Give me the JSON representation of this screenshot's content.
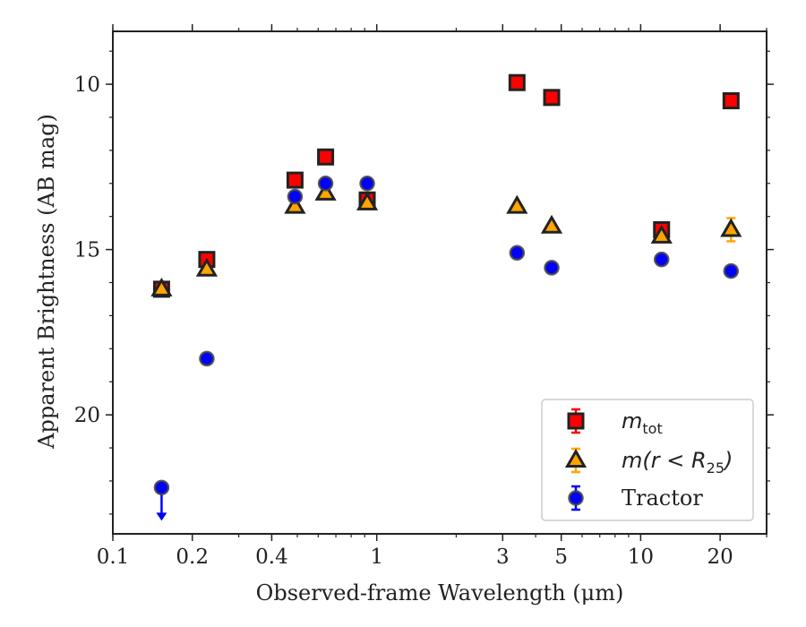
{
  "chart_data": {
    "type": "scatter",
    "xlabel": "Observed-frame Wavelength (μm)",
    "ylabel": "Apparent Brightness (AB mag)",
    "xscale": "log",
    "xlim": [
      0.1,
      30
    ],
    "ylim": [
      23.6,
      8.4
    ],
    "y_inverted": true,
    "x_ticks": [
      0.1,
      0.2,
      0.4,
      1,
      3,
      5,
      10,
      20
    ],
    "x_tick_labels": [
      "0.1",
      "0.2",
      "0.4",
      "1",
      "3",
      "5",
      "10",
      "20"
    ],
    "y_ticks": [
      10,
      15,
      20
    ],
    "y_tick_labels": [
      "10",
      "15",
      "20"
    ],
    "legend_position": "lower-right",
    "series": [
      {
        "name": "m_tot",
        "legend_main": "m",
        "legend_sub": "tot",
        "marker": "square",
        "color": "#ff0000",
        "edge_color": "#222222",
        "errorbar_color": "#ff0000",
        "x": [
          0.153,
          0.227,
          0.49,
          0.64,
          0.92,
          3.4,
          4.6,
          12.0,
          22.0
        ],
        "y": [
          16.2,
          15.3,
          12.9,
          12.2,
          13.5,
          9.95,
          10.4,
          14.4,
          10.5
        ]
      },
      {
        "name": "m(r < R_25)",
        "legend_main": "m(r < R",
        "legend_sub": "25",
        "legend_tail": ")",
        "marker": "triangle",
        "color": "#ffa500",
        "edge_color": "#222222",
        "errorbar_color": "#ffa500",
        "x": [
          0.153,
          0.227,
          0.49,
          0.64,
          0.92,
          3.4,
          4.6,
          12.0,
          22.0
        ],
        "y": [
          16.2,
          15.6,
          13.7,
          13.3,
          13.6,
          13.7,
          14.3,
          14.6,
          14.4
        ],
        "yerr": [
          0,
          0,
          0,
          0,
          0,
          0,
          0,
          0,
          0.35
        ]
      },
      {
        "name": "Tractor",
        "marker": "circle",
        "color": "#0000ff",
        "edge_color": "#444444",
        "errorbar_color": "#0000ff",
        "x": [
          0.153,
          0.227,
          0.49,
          0.64,
          0.92,
          3.4,
          4.6,
          12.0,
          22.0
        ],
        "y": [
          22.2,
          18.3,
          13.4,
          13.0,
          13.0,
          15.1,
          15.55,
          15.3,
          15.65
        ],
        "upper_limit_index": 0
      }
    ]
  },
  "colors": {
    "axes": "#222222",
    "background": "#ffffff",
    "legend_border": "#cccccc"
  }
}
